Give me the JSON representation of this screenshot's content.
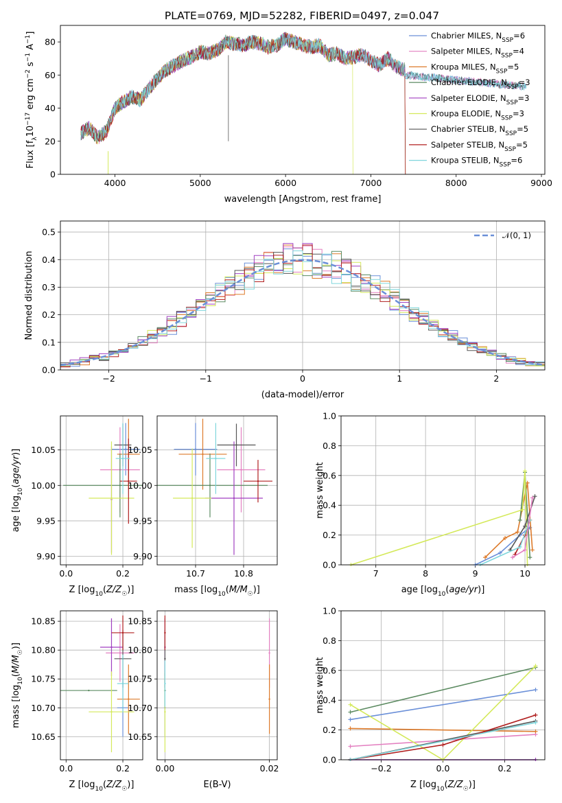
{
  "figure": {
    "title": "PLATE=0769, MJD=52282, FIBERID=0497, z=0.047"
  },
  "chart_data": [
    {
      "id": "spectrum",
      "type": "line",
      "xlabel": "wavelength [Angstrom, rest frame]",
      "ylabel": "Flux [f_λ 10⁻¹⁷ erg cm⁻² s⁻¹ A⁻¹]",
      "xlim": [
        3360,
        9040
      ],
      "ylim": [
        0,
        90
      ],
      "xticks": [
        4000,
        5000,
        6000,
        7000,
        8000,
        9000
      ],
      "yticks": [
        0,
        20,
        40,
        60,
        80
      ],
      "grid": false,
      "legend_position": "top-right",
      "spectrum": {
        "x": [
          3600,
          3700,
          3800,
          3900,
          4000,
          4100,
          4200,
          4300,
          4400,
          4500,
          4600,
          4700,
          4800,
          4900,
          5000,
          5100,
          5200,
          5300,
          5400,
          5500,
          5600,
          5700,
          5800,
          5900,
          6000,
          6100,
          6200,
          6300,
          6400,
          6500,
          6600,
          6700,
          6800,
          6900,
          7000,
          7100,
          7200,
          7300,
          7400
        ],
        "y": [
          25,
          28,
          22,
          26,
          40,
          44,
          47,
          45,
          52,
          58,
          63,
          66,
          69,
          71,
          74,
          73,
          75,
          80,
          79,
          78,
          80,
          79,
          77,
          78,
          82,
          80,
          78,
          77,
          78,
          72,
          73,
          70,
          71,
          72,
          69,
          66,
          70,
          65,
          63
        ]
      },
      "series": [
        {
          "name": "Chabrier MILES, N_SSP=6",
          "color": "#6a8fd8"
        },
        {
          "name": "Salpeter MILES, N_SSP=4",
          "color": "#e37fc0"
        },
        {
          "name": "Kroupa MILES, N_SSP=5",
          "color": "#dd7a2a"
        },
        {
          "name": "Chabrier ELODIE, N_SSP=3",
          "color": "#5b8a60"
        },
        {
          "name": "Salpeter ELODIE, N_SSP=3",
          "color": "#a03fc0"
        },
        {
          "name": "Kroupa ELODIE, N_SSP=3",
          "color": "#d4e95a"
        },
        {
          "name": "Chabrier STELIB, N_SSP=5",
          "color": "#555555"
        },
        {
          "name": "Salpeter STELIB, N_SSP=5",
          "color": "#b01e1e"
        },
        {
          "name": "Kroupa STELIB, N_SSP=6",
          "color": "#7fd6dc"
        }
      ]
    },
    {
      "id": "residuals",
      "type": "line",
      "xlabel": "(data-model)/error",
      "ylabel": "Normed distribution",
      "xlim": [
        -2.5,
        2.5
      ],
      "ylim": [
        0,
        0.54
      ],
      "xticks": [
        -2,
        -1,
        0,
        1,
        2
      ],
      "yticks": [
        0.0,
        0.1,
        0.2,
        0.3,
        0.4,
        0.5
      ],
      "grid": true,
      "legend_position": "top-right",
      "reference": {
        "name": "𝒩(0, 1)",
        "mean": 0,
        "sigma": 1,
        "color": "#6a8fd8"
      },
      "bin_width": 0.1
    },
    {
      "id": "age-vs-Z",
      "type": "scatter",
      "xlabel": "Z [log₁₀(Z/Z☉)]",
      "ylabel": "age  [log₁₀(age/yr)]",
      "xlim": [
        -0.02,
        0.27
      ],
      "ylim": [
        9.888,
        10.098
      ],
      "xticks": [
        0.0,
        0.2
      ],
      "yticks": [
        9.9,
        9.95,
        10.0,
        10.05
      ],
      "grid": true,
      "points": [
        {
          "x": 0.21,
          "xerr": 0.05,
          "y": 10.051,
          "yerr": 0.037
        },
        {
          "x": 0.19,
          "xerr": 0.07,
          "y": 10.022,
          "yerr": 0.06
        },
        {
          "x": 0.22,
          "xerr": 0.04,
          "y": 10.044,
          "yerr": 0.05
        },
        {
          "x": 0.19,
          "xerr": 0.2,
          "y": 10.0,
          "yerr": 0.045
        },
        {
          "x": 0.16,
          "xerr": 0.0,
          "y": 9.98,
          "yerr": 0.075
        },
        {
          "x": 0.16,
          "xerr": 0.08,
          "y": 9.982,
          "yerr": 0.08
        },
        {
          "x": 0.2,
          "xerr": 0.03,
          "y": 10.057,
          "yerr": 0.03
        },
        {
          "x": 0.22,
          "xerr": 0.03,
          "y": 10.006,
          "yerr": 0.06
        },
        {
          "x": 0.2,
          "xerr": 0.025,
          "y": 10.038,
          "yerr": 0.05
        }
      ]
    },
    {
      "id": "age-vs-mass",
      "type": "scatter",
      "xlabel": "mass [log₁₀(M/M☉)]",
      "ylabel": "",
      "xlim": [
        10.62,
        10.87
      ],
      "ylim": [
        9.888,
        10.098
      ],
      "xticks": [
        10.7,
        10.8
      ],
      "yticks": [
        9.9,
        9.95,
        10.0,
        10.05
      ],
      "grid": true,
      "points": [
        {
          "x": 10.7,
          "xerr": 0.045,
          "y": 10.051,
          "yerr": 0.037
        },
        {
          "x": 10.795,
          "xerr": 0.05,
          "y": 10.022,
          "yerr": 0.06
        },
        {
          "x": 10.715,
          "xerr": 0.05,
          "y": 10.044,
          "yerr": 0.05
        },
        {
          "x": 10.73,
          "xerr": 0.12,
          "y": 10.0,
          "yerr": 0.045
        },
        {
          "x": 10.78,
          "xerr": 0.06,
          "y": 9.982,
          "yerr": 0.08
        },
        {
          "x": 10.693,
          "xerr": 0.04,
          "y": 9.982,
          "yerr": 0.07
        },
        {
          "x": 10.785,
          "xerr": 0.04,
          "y": 10.057,
          "yerr": 0.03
        },
        {
          "x": 10.83,
          "xerr": 0.03,
          "y": 10.006,
          "yerr": 0.03
        },
        {
          "x": 10.742,
          "xerr": 0.02,
          "y": 10.038,
          "yerr": 0.05
        }
      ]
    },
    {
      "id": "massweight-vs-age",
      "type": "line",
      "xlabel": "age  [log₁₀(age/yr)]",
      "ylabel": "mass weight",
      "xlim": [
        6.3,
        10.4
      ],
      "ylim": [
        0,
        1
      ],
      "xticks": [
        7,
        8,
        9,
        10
      ],
      "yticks": [
        0.0,
        0.2,
        0.4,
        0.6,
        0.8,
        1.0
      ],
      "grid": true,
      "series": [
        {
          "color": "#6a8fd8",
          "x": [
            9.0,
            9.5,
            9.9,
            10.1
          ],
          "y": [
            0.0,
            0.08,
            0.2,
            0.25
          ]
        },
        {
          "color": "#dd7a2a",
          "x": [
            9.2,
            9.6,
            9.85,
            10.05,
            10.15
          ],
          "y": [
            0.05,
            0.18,
            0.22,
            0.55,
            0.1
          ]
        },
        {
          "color": "#5b8a60",
          "x": [
            9.9,
            10.0,
            10.1
          ],
          "y": [
            0.3,
            0.62,
            0.05
          ]
        },
        {
          "color": "#d4e95a",
          "x": [
            6.5,
            9.95,
            10.0,
            10.05
          ],
          "y": [
            0.0,
            0.37,
            0.63,
            0.0
          ]
        },
        {
          "color": "#555555",
          "x": [
            9.7,
            10.0,
            10.2
          ],
          "y": [
            0.1,
            0.26,
            0.46
          ]
        },
        {
          "color": "#b01e1e",
          "x": [
            9.8,
            10.0,
            10.1
          ],
          "y": [
            0.07,
            0.2,
            0.3
          ]
        },
        {
          "color": "#7fd6dc",
          "x": [
            9.1,
            9.9,
            10.1
          ],
          "y": [
            0.0,
            0.12,
            0.3
          ]
        },
        {
          "color": "#e37fc0",
          "x": [
            9.75,
            10.0,
            10.15
          ],
          "y": [
            0.05,
            0.1,
            0.45
          ]
        }
      ]
    },
    {
      "id": "mass-vs-Z",
      "type": "scatter",
      "xlabel": "Z [log₁₀(Z/Z☉)]",
      "ylabel": "mass [log₁₀(M/M☉)]",
      "xlim": [
        -0.02,
        0.27
      ],
      "ylim": [
        10.61,
        10.868
      ],
      "xticks": [
        0.0,
        0.2
      ],
      "yticks": [
        10.65,
        10.7,
        10.75,
        10.8,
        10.85
      ],
      "grid": true,
      "points": [
        {
          "x": 0.2,
          "xerr": 0.02,
          "y": 10.7,
          "yerr": 0.05
        },
        {
          "x": 0.19,
          "xerr": 0.05,
          "y": 10.795,
          "yerr": 0.05
        },
        {
          "x": 0.22,
          "xerr": 0.04,
          "y": 10.715,
          "yerr": 0.06
        },
        {
          "x": 0.08,
          "xerr": 0.1,
          "y": 10.73,
          "yerr": 0.0
        },
        {
          "x": 0.16,
          "xerr": 0.04,
          "y": 10.805,
          "yerr": 0.05
        },
        {
          "x": 0.16,
          "xerr": 0.08,
          "y": 10.693,
          "yerr": 0.07
        },
        {
          "x": 0.2,
          "xerr": 0.03,
          "y": 10.785,
          "yerr": 0.05
        },
        {
          "x": 0.2,
          "xerr": 0.04,
          "y": 10.83,
          "yerr": 0.03
        },
        {
          "x": 0.2,
          "xerr": 0.02,
          "y": 10.742,
          "yerr": 0.05
        }
      ]
    },
    {
      "id": "mass-vs-EBV",
      "type": "scatter",
      "xlabel": "E(B-V)",
      "ylabel": "",
      "xlim": [
        -0.0015,
        0.0215
      ],
      "ylim": [
        10.61,
        10.868
      ],
      "xticks": [
        0.0,
        0.02
      ],
      "yticks": [
        10.65,
        10.7,
        10.75,
        10.8,
        10.85
      ],
      "grid": true,
      "points": [
        {
          "x": 0.0,
          "y": 10.7,
          "yerr": 0.05
        },
        {
          "x": 0.02,
          "y": 10.795,
          "yerr": 0.06
        },
        {
          "x": 0.02,
          "y": 10.715,
          "yerr": 0.06
        },
        {
          "x": 0.0,
          "y": 10.73,
          "yerr": 0.03
        },
        {
          "x": 0.0,
          "y": 10.805,
          "yerr": 0.05
        },
        {
          "x": 0.0,
          "y": 10.693,
          "yerr": 0.07
        },
        {
          "x": 0.0,
          "y": 10.785,
          "yerr": 0.05
        },
        {
          "x": 0.0,
          "y": 10.83,
          "yerr": 0.03
        },
        {
          "x": 0.0,
          "y": 10.742,
          "yerr": 0.04
        }
      ]
    },
    {
      "id": "massweight-vs-Z",
      "type": "line",
      "xlabel": "Z [log₁₀(Z/Z☉)]",
      "ylabel": "mass weight",
      "xlim": [
        -0.33,
        0.33
      ],
      "ylim": [
        0,
        1
      ],
      "xticks": [
        -0.2,
        0.0,
        0.2
      ],
      "yticks": [
        0.0,
        0.2,
        0.4,
        0.6,
        0.8,
        1.0
      ],
      "grid": true,
      "series": [
        {
          "color": "#6a8fd8",
          "x": [
            -0.3,
            0.3
          ],
          "y": [
            0.27,
            0.47
          ]
        },
        {
          "color": "#e37fc0",
          "x": [
            -0.3,
            0.3
          ],
          "y": [
            0.09,
            0.17
          ]
        },
        {
          "color": "#dd7a2a",
          "x": [
            -0.3,
            0.3
          ],
          "y": [
            0.21,
            0.19
          ]
        },
        {
          "color": "#5b8a60",
          "x": [
            -0.3,
            0.3
          ],
          "y": [
            0.32,
            0.62
          ]
        },
        {
          "color": "#a03fc0",
          "x": [
            -0.3,
            0.0,
            0.3
          ],
          "y": [
            0.0,
            0.0,
            0.0
          ]
        },
        {
          "color": "#d4e95a",
          "x": [
            -0.3,
            0.0,
            0.3
          ],
          "y": [
            0.37,
            0.0,
            0.63
          ]
        },
        {
          "color": "#555555",
          "x": [
            -0.3,
            0.3
          ],
          "y": [
            0.0,
            0.26
          ]
        },
        {
          "color": "#b01e1e",
          "x": [
            -0.3,
            0.0,
            0.3
          ],
          "y": [
            0.0,
            0.1,
            0.3
          ]
        },
        {
          "color": "#7fd6dc",
          "x": [
            -0.3,
            0.3
          ],
          "y": [
            0.0,
            0.25
          ]
        }
      ]
    }
  ]
}
